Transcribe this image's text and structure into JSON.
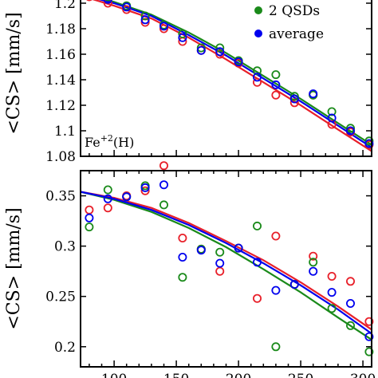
{
  "chart_data": [
    {
      "type": "scatter",
      "ylabel": "<CS> [mm/s]",
      "annotation_base": "Fe",
      "annotation_sup": "+2",
      "annotation_rest": "(H)",
      "xlim": [
        73,
        307
      ],
      "ylim": [
        1.08,
        1.21
      ],
      "yticks": [
        1.08,
        1.1,
        1.12,
        1.14,
        1.16,
        1.18,
        1.2
      ],
      "ytick_labels": [
        "1.08",
        "1.1",
        "1.12",
        "1.14",
        "1.16",
        "1.18",
        "1.2"
      ],
      "legend_position": "top-right",
      "legend": [
        {
          "label": "2 QSDs",
          "color": "#1a8a1a"
        },
        {
          "label": "average",
          "color": "#0000ee"
        }
      ],
      "series": [
        {
          "key": "red",
          "color": "#e8202a",
          "points": [
            [
              80,
              1.205
            ],
            [
              95,
              1.2
            ],
            [
              110,
              1.195
            ],
            [
              125,
              1.185
            ],
            [
              140,
              1.18
            ],
            [
              155,
              1.17
            ],
            [
              170,
              1.163
            ],
            [
              185,
              1.16
            ],
            [
              200,
              1.153
            ],
            [
              215,
              1.138
            ],
            [
              230,
              1.128
            ],
            [
              245,
              1.122
            ],
            [
              260,
              1.128
            ],
            [
              275,
              1.105
            ],
            [
              290,
              1.099
            ],
            [
              305,
              1.089
            ]
          ],
          "fit": [
            [
              73,
              1.206
            ],
            [
              100,
              1.198
            ],
            [
              130,
              1.188
            ],
            [
              160,
              1.173
            ],
            [
              190,
              1.156
            ],
            [
              220,
              1.138
            ],
            [
              250,
              1.12
            ],
            [
              280,
              1.101
            ],
            [
              307,
              1.084
            ]
          ]
        },
        {
          "key": "green",
          "color": "#1a8a1a",
          "points": [
            [
              80,
              1.21
            ],
            [
              95,
              1.205
            ],
            [
              110,
              1.198
            ],
            [
              125,
              1.19
            ],
            [
              140,
              1.183
            ],
            [
              155,
              1.176
            ],
            [
              170,
              1.165
            ],
            [
              185,
              1.165
            ],
            [
              200,
              1.155
            ],
            [
              215,
              1.147
            ],
            [
              230,
              1.144
            ],
            [
              245,
              1.127
            ],
            [
              260,
              1.128
            ],
            [
              275,
              1.115
            ],
            [
              290,
              1.102
            ],
            [
              305,
              1.092
            ]
          ],
          "fit": [
            [
              73,
              1.208
            ],
            [
              100,
              1.201
            ],
            [
              130,
              1.191
            ],
            [
              160,
              1.177
            ],
            [
              190,
              1.161
            ],
            [
              220,
              1.143
            ],
            [
              250,
              1.125
            ],
            [
              280,
              1.106
            ],
            [
              307,
              1.089
            ]
          ]
        },
        {
          "key": "blue",
          "color": "#0000ee",
          "points": [
            [
              80,
              1.207
            ],
            [
              95,
              1.203
            ],
            [
              110,
              1.197
            ],
            [
              125,
              1.187
            ],
            [
              140,
              1.182
            ],
            [
              155,
              1.173
            ],
            [
              170,
              1.163
            ],
            [
              185,
              1.162
            ],
            [
              200,
              1.154
            ],
            [
              215,
              1.142
            ],
            [
              230,
              1.136
            ],
            [
              245,
              1.125
            ],
            [
              260,
              1.129
            ],
            [
              275,
              1.11
            ],
            [
              290,
              1.1
            ],
            [
              305,
              1.09
            ]
          ],
          "fit": [
            [
              73,
              1.207
            ],
            [
              100,
              1.2
            ],
            [
              130,
              1.19
            ],
            [
              160,
              1.175
            ],
            [
              190,
              1.159
            ],
            [
              220,
              1.141
            ],
            [
              250,
              1.123
            ],
            [
              280,
              1.104
            ],
            [
              307,
              1.087
            ]
          ]
        }
      ]
    },
    {
      "type": "scatter",
      "ylabel": "<CS> [mm/s]",
      "xlim": [
        73,
        307
      ],
      "ylim": [
        0.18,
        0.375
      ],
      "xticks": [
        100,
        150,
        200,
        250,
        300
      ],
      "xtick_labels": [
        "100",
        "150",
        "200",
        "250",
        "300"
      ],
      "yticks": [
        0.2,
        0.25,
        0.3,
        0.35
      ],
      "ytick_labels": [
        "0.2",
        "0.25",
        "0.3",
        "0.35"
      ],
      "series": [
        {
          "key": "red",
          "color": "#e8202a",
          "points": [
            [
              80,
              0.336
            ],
            [
              95,
              0.338
            ],
            [
              110,
              0.35
            ],
            [
              125,
              0.355
            ],
            [
              140,
              0.38
            ],
            [
              155,
              0.308
            ],
            [
              170,
              0.297
            ],
            [
              185,
              0.275
            ],
            [
              200,
              0.298
            ],
            [
              215,
              0.248
            ],
            [
              230,
              0.31
            ],
            [
              245,
              0.262
            ],
            [
              260,
              0.29
            ],
            [
              275,
              0.27
            ],
            [
              290,
              0.265
            ],
            [
              305,
              0.225
            ]
          ],
          "fit": [
            [
              73,
              0.354
            ],
            [
              100,
              0.348
            ],
            [
              130,
              0.338
            ],
            [
              160,
              0.323
            ],
            [
              190,
              0.305
            ],
            [
              220,
              0.286
            ],
            [
              250,
              0.264
            ],
            [
              280,
              0.24
            ],
            [
              307,
              0.217
            ]
          ]
        },
        {
          "key": "green",
          "color": "#1a8a1a",
          "points": [
            [
              80,
              0.319
            ],
            [
              95,
              0.356
            ],
            [
              110,
              0.349
            ],
            [
              125,
              0.36
            ],
            [
              140,
              0.341
            ],
            [
              155,
              0.269
            ],
            [
              170,
              0.297
            ],
            [
              185,
              0.294
            ],
            [
              200,
              0.298
            ],
            [
              215,
              0.32
            ],
            [
              230,
              0.2
            ],
            [
              245,
              0.262
            ],
            [
              260,
              0.284
            ],
            [
              275,
              0.238
            ],
            [
              290,
              0.221
            ],
            [
              305,
              0.195
            ]
          ],
          "fit": [
            [
              73,
              0.354
            ],
            [
              100,
              0.346
            ],
            [
              130,
              0.334
            ],
            [
              160,
              0.318
            ],
            [
              190,
              0.299
            ],
            [
              220,
              0.277
            ],
            [
              250,
              0.254
            ],
            [
              280,
              0.229
            ],
            [
              307,
              0.207
            ]
          ]
        },
        {
          "key": "blue",
          "color": "#0000ee",
          "points": [
            [
              80,
              0.328
            ],
            [
              95,
              0.347
            ],
            [
              110,
              0.349
            ],
            [
              125,
              0.358
            ],
            [
              140,
              0.361
            ],
            [
              155,
              0.289
            ],
            [
              170,
              0.296
            ],
            [
              185,
              0.283
            ],
            [
              200,
              0.298
            ],
            [
              215,
              0.284
            ],
            [
              230,
              0.256
            ],
            [
              245,
              0.262
            ],
            [
              260,
              0.275
            ],
            [
              275,
              0.254
            ],
            [
              290,
              0.243
            ],
            [
              305,
              0.21
            ]
          ],
          "fit": [
            [
              73,
              0.354
            ],
            [
              100,
              0.347
            ],
            [
              130,
              0.336
            ],
            [
              160,
              0.321
            ],
            [
              190,
              0.303
            ],
            [
              220,
              0.283
            ],
            [
              250,
              0.261
            ],
            [
              280,
              0.237
            ],
            [
              307,
              0.213
            ]
          ]
        }
      ]
    }
  ]
}
